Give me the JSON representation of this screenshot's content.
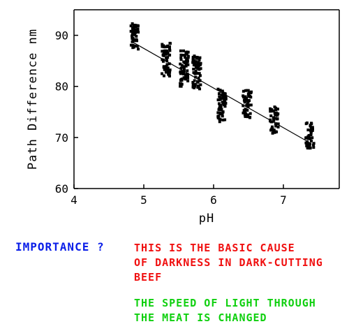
{
  "chart_data": {
    "type": "scatter",
    "title": "",
    "xlabel": "pH",
    "ylabel": "Path Difference nm",
    "xlim": [
      4,
      7.8
    ],
    "ylim": [
      60,
      95
    ],
    "xticks": [
      4,
      5,
      6,
      7
    ],
    "yticks": [
      60,
      70,
      80,
      90
    ],
    "grid": false,
    "legend": "none",
    "point_color": "#000000",
    "clusters": [
      {
        "x": 4.87,
        "y_min": 87.3,
        "y_max": 92.3
      },
      {
        "x": 5.32,
        "y_min": 82.0,
        "y_max": 88.5
      },
      {
        "x": 5.58,
        "y_min": 80.0,
        "y_max": 87.0
      },
      {
        "x": 5.76,
        "y_min": 79.5,
        "y_max": 86.0
      },
      {
        "x": 6.12,
        "y_min": 72.8,
        "y_max": 79.5
      },
      {
        "x": 6.48,
        "y_min": 73.8,
        "y_max": 79.3
      },
      {
        "x": 6.87,
        "y_min": 70.8,
        "y_max": 76.0
      },
      {
        "x": 7.38,
        "y_min": 67.9,
        "y_max": 73.0
      }
    ],
    "trend_line": {
      "x": [
        4.85,
        7.4
      ],
      "y": [
        88.6,
        68.8
      ]
    }
  },
  "annotations": {
    "importance": "IMPORTANCE ?",
    "cause": [
      "THIS IS THE BASIC CAUSE",
      "OF DARKNESS IN DARK-CUTTING",
      "BEEF"
    ],
    "speed": [
      "THE SPEED OF LIGHT THROUGH",
      "THE MEAT IS CHANGED"
    ]
  }
}
